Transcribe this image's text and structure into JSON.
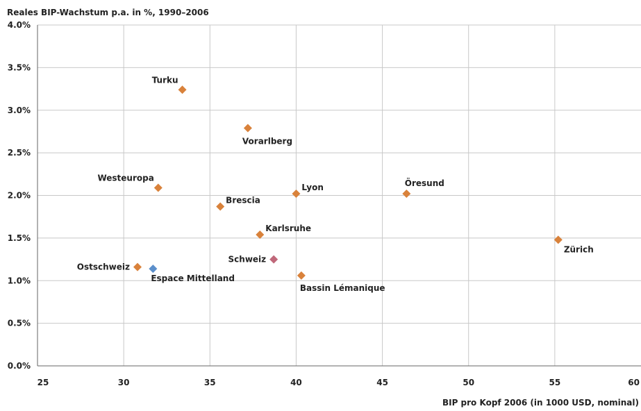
{
  "chart_data": {
    "type": "scatter",
    "title": "Reales BIP-Wachstum p.a. in %, 1990–2006",
    "xlabel": "BIP pro Kopf 2006 (in 1000 USD, nominal)",
    "ylabel": "",
    "xlim": [
      25,
      60
    ],
    "ylim": [
      0.0,
      4.0
    ],
    "x_ticks": [
      "25",
      "30",
      "35",
      "40",
      "45",
      "50",
      "55",
      "60"
    ],
    "y_ticks": [
      "0.0%",
      "0.5%",
      "1.0%",
      "1.5%",
      "2.0%",
      "2.5%",
      "3.0%",
      "3.5%",
      "4.0%"
    ],
    "grid": true,
    "colors": {
      "region": "#d9823b",
      "espace_mittelland": "#5b8fcb",
      "schweiz": "#c0687a",
      "grid": "#c8c8c8",
      "axis": "#666666",
      "text": "#222222"
    },
    "points": [
      {
        "label": "Turku",
        "x": 33.4,
        "y": 3.24,
        "color": "#d9823b",
        "label_pos": "top-left"
      },
      {
        "label": "Vorarlberg",
        "x": 37.2,
        "y": 2.79,
        "color": "#d9823b",
        "label_pos": "bottom-right"
      },
      {
        "label": "Westeuropa",
        "x": 32.0,
        "y": 2.09,
        "color": "#d9823b",
        "label_pos": "top-left"
      },
      {
        "label": "Brescia",
        "x": 35.6,
        "y": 1.87,
        "color": "#d9823b",
        "label_pos": "top-right"
      },
      {
        "label": "Lyon",
        "x": 40.0,
        "y": 2.02,
        "color": "#d9823b",
        "label_pos": "top-right"
      },
      {
        "label": "Öresund",
        "x": 46.4,
        "y": 2.02,
        "color": "#d9823b",
        "label_pos": "top-center"
      },
      {
        "label": "Karlsruhe",
        "x": 37.9,
        "y": 1.54,
        "color": "#d9823b",
        "label_pos": "top-right"
      },
      {
        "label": "Zürich",
        "x": 55.2,
        "y": 1.48,
        "color": "#d9823b",
        "label_pos": "bottom-right"
      },
      {
        "label": "Schweiz",
        "x": 38.7,
        "y": 1.25,
        "color": "#c0687a",
        "label_pos": "left"
      },
      {
        "label": "Ostschweiz",
        "x": 30.8,
        "y": 1.16,
        "color": "#d9823b",
        "label_pos": "left"
      },
      {
        "label": "Espace Mittelland",
        "x": 31.7,
        "y": 1.14,
        "color": "#5b8fcb",
        "label_pos": "bottom-right"
      },
      {
        "label": "Bassin Lémanique",
        "x": 40.3,
        "y": 1.06,
        "color": "#d9823b",
        "label_pos": "bottom-right"
      }
    ]
  }
}
